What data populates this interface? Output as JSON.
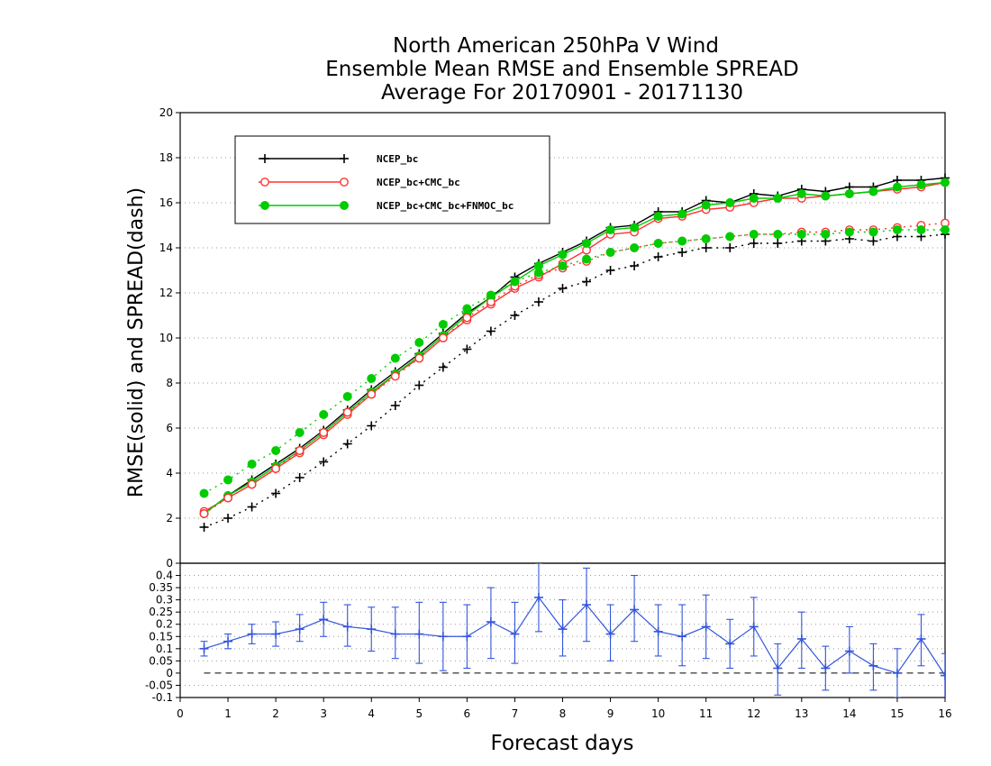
{
  "chart_data": [
    {
      "type": "line",
      "title": "North American 250hPa V Wind",
      "subtitle": "Ensemble Mean RMSE and Ensemble SPREAD",
      "subtitle2": "Average For 20170901 - 20171130",
      "ylabel": "RMSE(solid) and SPREAD(dash)",
      "xlabel": "",
      "ylim": [
        0,
        20
      ],
      "xlim": [
        0,
        16
      ],
      "yticks": [
        "2",
        "4",
        "6",
        "8",
        "10",
        "12",
        "14",
        "16",
        "18",
        "20"
      ],
      "grid": "horizontal dotted",
      "legend_position": "top-left",
      "x": [
        0.5,
        1,
        1.5,
        2,
        2.5,
        3,
        3.5,
        4,
        4.5,
        5,
        5.5,
        6,
        6.5,
        7,
        7.5,
        8,
        8.5,
        9,
        9.5,
        10,
        10.5,
        11,
        11.5,
        12,
        12.5,
        13,
        13.5,
        14,
        14.5,
        15,
        15.5,
        16
      ],
      "series": [
        {
          "name": "NCEP_bc",
          "style": "solid",
          "color": "#000000",
          "marker": "plus",
          "values": [
            2.2,
            3.0,
            3.7,
            4.4,
            5.1,
            5.9,
            6.8,
            7.7,
            8.5,
            9.3,
            10.2,
            11.1,
            11.8,
            12.7,
            13.3,
            13.8,
            14.3,
            14.9,
            15.0,
            15.6,
            15.6,
            16.1,
            16.0,
            16.4,
            16.3,
            16.6,
            16.5,
            16.7,
            16.7,
            17.0,
            17.0,
            17.1
          ]
        },
        {
          "name": "NCEP_bc+CMC_bc",
          "style": "solid",
          "color": "#ff3333",
          "marker": "open-circle",
          "values": [
            2.3,
            2.9,
            3.5,
            4.2,
            4.9,
            5.7,
            6.6,
            7.5,
            8.4,
            9.1,
            10.0,
            10.8,
            11.5,
            12.2,
            12.7,
            13.3,
            13.9,
            14.6,
            14.7,
            15.3,
            15.4,
            15.7,
            15.8,
            16.0,
            16.2,
            16.2,
            16.3,
            16.4,
            16.5,
            16.6,
            16.7,
            16.9
          ]
        },
        {
          "name": "NCEP_bc+CMC_bc+FNMOC_bc",
          "style": "solid",
          "color": "#00cc00",
          "marker": "filled-circle",
          "values": [
            2.2,
            3.0,
            3.6,
            4.3,
            5.0,
            5.8,
            6.7,
            7.6,
            8.4,
            9.2,
            10.1,
            11.0,
            11.8,
            12.5,
            13.2,
            13.7,
            14.2,
            14.8,
            14.9,
            15.4,
            15.5,
            15.9,
            16.0,
            16.2,
            16.2,
            16.4,
            16.3,
            16.4,
            16.5,
            16.7,
            16.8,
            16.9
          ]
        },
        {
          "name": "NCEP_bc",
          "style": "dotted",
          "color": "#000000",
          "marker": "plus",
          "values": [
            1.6,
            2.0,
            2.5,
            3.1,
            3.8,
            4.5,
            5.3,
            6.1,
            7.0,
            7.9,
            8.7,
            9.5,
            10.3,
            11.0,
            11.6,
            12.2,
            12.5,
            13.0,
            13.2,
            13.6,
            13.8,
            14.0,
            14.0,
            14.2,
            14.2,
            14.3,
            14.3,
            14.4,
            14.3,
            14.5,
            14.5,
            14.6
          ]
        },
        {
          "name": "NCEP_bc+CMC_bc",
          "style": "dotted",
          "color": "#ff3333",
          "marker": "open-circle",
          "values": [
            2.2,
            2.9,
            3.5,
            4.2,
            5.0,
            5.8,
            6.7,
            7.5,
            8.3,
            9.1,
            10.0,
            10.9,
            11.6,
            12.3,
            12.8,
            13.1,
            13.4,
            13.8,
            14.0,
            14.2,
            14.3,
            14.4,
            14.5,
            14.6,
            14.6,
            14.7,
            14.7,
            14.8,
            14.8,
            14.9,
            15.0,
            15.1
          ]
        },
        {
          "name": "NCEP_bc+CMC_bc+FNMOC_bc",
          "style": "dotted",
          "color": "#00cc00",
          "marker": "filled-circle",
          "values": [
            3.1,
            3.7,
            4.4,
            5.0,
            5.8,
            6.6,
            7.4,
            8.2,
            9.1,
            9.8,
            10.6,
            11.3,
            11.9,
            12.5,
            12.9,
            13.2,
            13.5,
            13.8,
            14.0,
            14.2,
            14.3,
            14.4,
            14.5,
            14.6,
            14.6,
            14.6,
            14.6,
            14.7,
            14.7,
            14.8,
            14.8,
            14.8
          ]
        }
      ]
    },
    {
      "type": "line",
      "xlabel": "Forecast days",
      "ylim": [
        -0.1,
        0.45
      ],
      "xlim": [
        0,
        16
      ],
      "xticks": [
        "0",
        "1",
        "2",
        "3",
        "4",
        "5",
        "6",
        "7",
        "8",
        "9",
        "10",
        "11",
        "12",
        "13",
        "14",
        "15",
        "16"
      ],
      "yticks": [
        "-0.1",
        "-0.05",
        "0",
        "0.05",
        "0.1",
        "0.15",
        "0.2",
        "0.25",
        "0.3",
        "0.35",
        "0.4"
      ],
      "top_label": "0",
      "zero_line": "dashed",
      "grid": "horizontal dotted",
      "x": [
        0.5,
        1,
        1.5,
        2,
        2.5,
        3,
        3.5,
        4,
        4.5,
        5,
        5.5,
        6,
        6.5,
        7,
        7.5,
        8,
        8.5,
        9,
        9.5,
        10,
        10.5,
        11,
        11.5,
        12,
        12.5,
        13,
        13.5,
        14,
        14.5,
        15,
        15.5,
        16
      ],
      "series": [
        {
          "name": "",
          "color": "#3355dd",
          "marker": "plus",
          "values": [
            0.1,
            0.13,
            0.16,
            0.16,
            0.18,
            0.22,
            0.19,
            0.18,
            0.16,
            0.16,
            0.15,
            0.15,
            0.21,
            0.16,
            0.31,
            0.18,
            0.28,
            0.16,
            0.26,
            0.17,
            0.15,
            0.19,
            0.12,
            0.19,
            0.02,
            0.14,
            0.02,
            0.09,
            0.03,
            0.0,
            0.14,
            -0.01
          ],
          "err_low": [
            0.07,
            0.1,
            0.12,
            0.11,
            0.13,
            0.15,
            0.11,
            0.09,
            0.06,
            0.04,
            0.01,
            0.02,
            0.06,
            0.04,
            0.17,
            0.07,
            0.13,
            0.05,
            0.13,
            0.07,
            0.03,
            0.06,
            0.02,
            0.07,
            -0.09,
            0.02,
            -0.07,
            0.0,
            -0.07,
            -0.1,
            0.03,
            -0.11
          ],
          "err_high": [
            0.13,
            0.16,
            0.2,
            0.21,
            0.24,
            0.29,
            0.28,
            0.27,
            0.27,
            0.29,
            0.29,
            0.28,
            0.35,
            0.29,
            0.45,
            0.3,
            0.43,
            0.28,
            0.4,
            0.28,
            0.28,
            0.32,
            0.22,
            0.31,
            0.12,
            0.25,
            0.11,
            0.19,
            0.12,
            0.1,
            0.24,
            0.08
          ]
        }
      ]
    }
  ]
}
